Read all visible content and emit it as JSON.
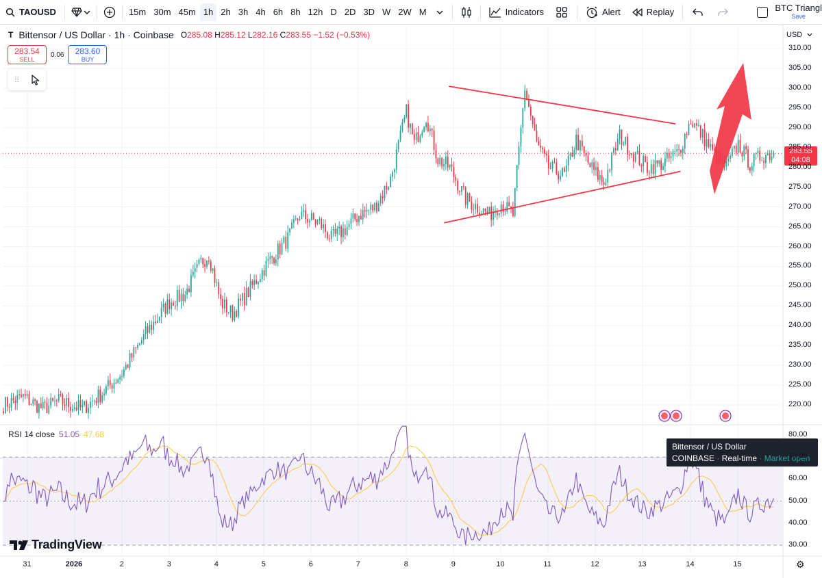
{
  "toolbar": {
    "symbol": "TAOUSD",
    "intervals": [
      "15m",
      "30m",
      "45m",
      "1h",
      "2h",
      "3h",
      "4h",
      "6h",
      "8h",
      "12h",
      "D",
      "2D",
      "3D",
      "W",
      "2W",
      "M"
    ],
    "active_interval": "1h",
    "indicators_label": "Indicators",
    "alert_label": "Alert",
    "replay_label": "Replay",
    "layout_name": "BTC Triangl",
    "save_label": "Save"
  },
  "legend": {
    "title": "Bittensor / US Dollar · 1h · Coinbase",
    "open_label": "O",
    "open": "285.08",
    "high_label": "H",
    "high": "285.12",
    "low_label": "L",
    "low": "282.16",
    "close_label": "C",
    "close": "283.55",
    "change": "−1.52 (−0.53%)"
  },
  "trade": {
    "sell_price": "283.54",
    "sell_label": "SELL",
    "spread": "0.06",
    "buy_price": "283.60",
    "buy_label": "BUY"
  },
  "rsi_legend": {
    "label": "RSI 14 close",
    "value1": "51.05",
    "value2": "47.68"
  },
  "price_axis": {
    "currency": "USD",
    "labels": [
      "310.00",
      "305.00",
      "300.00",
      "295.00",
      "290.00",
      "285.00",
      "280.00",
      "275.00",
      "270.00",
      "265.00",
      "260.00",
      "255.00",
      "250.00",
      "245.00",
      "240.00",
      "235.00",
      "230.00",
      "225.00",
      "220.00"
    ],
    "last_price": "283.55",
    "countdown": "04:08"
  },
  "rsi_axis": {
    "labels": [
      "80.00",
      "70.00",
      "60.00",
      "50.00",
      "40.00",
      "30.00"
    ]
  },
  "time_axis": {
    "labels": [
      "31",
      "2026",
      "2",
      "3",
      "4",
      "5",
      "6",
      "7",
      "8",
      "9",
      "10",
      "11",
      "12",
      "13",
      "14",
      "15"
    ]
  },
  "tooltip": {
    "title": "Bittensor / US Dollar",
    "exchange": "COINBASE",
    "mode": "Real-time",
    "status": "Market open"
  },
  "branding": {
    "logo_text": "TradingView"
  },
  "colors": {
    "up": "#26a69a",
    "down": "#f23645",
    "rsi": "#7e57c2",
    "rsi_ma": "#f7c948",
    "drawing": "#f23645"
  },
  "chart_data": {
    "type": "candlestick",
    "symbol": "TAOUSD",
    "interval": "1h",
    "ylim": [
      215,
      313
    ],
    "rsi_ylim": [
      25,
      85
    ],
    "close_anchors": [
      [
        0,
        220
      ],
      [
        10,
        222
      ],
      [
        20,
        219
      ],
      [
        28,
        221
      ],
      [
        40,
        219
      ],
      [
        50,
        223
      ],
      [
        60,
        228
      ],
      [
        72,
        238
      ],
      [
        84,
        246
      ],
      [
        92,
        248
      ],
      [
        100,
        256
      ],
      [
        104,
        258
      ],
      [
        110,
        246
      ],
      [
        116,
        243
      ],
      [
        126,
        250
      ],
      [
        134,
        256
      ],
      [
        144,
        262
      ],
      [
        150,
        268
      ],
      [
        160,
        266
      ],
      [
        166,
        262
      ],
      [
        172,
        264
      ],
      [
        180,
        268
      ],
      [
        188,
        270
      ],
      [
        196,
        277
      ],
      [
        204,
        294
      ],
      [
        208,
        286
      ],
      [
        214,
        293
      ],
      [
        220,
        282
      ],
      [
        226,
        280
      ],
      [
        234,
        272
      ],
      [
        240,
        270
      ],
      [
        246,
        268
      ],
      [
        252,
        271
      ],
      [
        258,
        268
      ],
      [
        264,
        300
      ],
      [
        270,
        286
      ],
      [
        276,
        280
      ],
      [
        284,
        278
      ],
      [
        290,
        287
      ],
      [
        296,
        281
      ],
      [
        304,
        276
      ],
      [
        312,
        288
      ],
      [
        318,
        284
      ],
      [
        326,
        280
      ],
      [
        334,
        281
      ],
      [
        342,
        284
      ],
      [
        348,
        292
      ],
      [
        354,
        288
      ],
      [
        360,
        283
      ],
      [
        366,
        280
      ],
      [
        372,
        286
      ],
      [
        378,
        281
      ],
      [
        384,
        283
      ],
      [
        390,
        283.55
      ]
    ],
    "triangle": {
      "upper": [
        [
          "8.9",
          300.5
        ],
        [
          "13.7",
          291
        ]
      ],
      "lower": [
        [
          "8.8",
          266
        ],
        [
          "13.8",
          279
        ]
      ]
    },
    "rsi_period": 14,
    "rsi_ma_period": 14
  }
}
